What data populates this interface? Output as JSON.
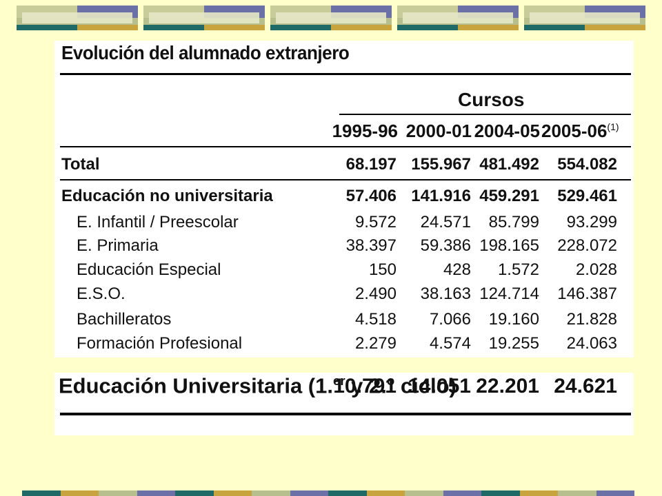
{
  "title": "Evolución del alumnado extranjero",
  "header": {
    "group": "Cursos",
    "years": [
      "1995-96",
      "2000-01",
      "2004-05",
      "2005-06"
    ],
    "footnote": "(1)"
  },
  "rows": [
    {
      "label": "Total",
      "values": [
        "68.197",
        "155.967",
        "481.492",
        "554.082"
      ],
      "bold": true
    },
    {
      "label": "Educación no universitaria",
      "values": [
        "57.406",
        "141.916",
        "459.291",
        "529.461"
      ],
      "bold": true
    },
    {
      "label": "E. Infantil / Preescolar",
      "values": [
        "9.572",
        "24.571",
        "85.799",
        "93.299"
      ]
    },
    {
      "label": "E. Primaria",
      "values": [
        "38.397",
        "59.386",
        "198.165",
        "228.072"
      ]
    },
    {
      "label": "Educación Especial",
      "values": [
        "150",
        "428",
        "1.572",
        "2.028"
      ]
    },
    {
      "label": "E.S.O.",
      "values": [
        "2.490",
        "38.163",
        "124.714",
        "146.387"
      ]
    },
    {
      "label": "Bachilleratos",
      "values": [
        "4.518",
        "7.066",
        "19.160",
        "21.828"
      ]
    },
    {
      "label": "Formación Profesional",
      "values": [
        "2.279",
        "4.574",
        "19.255",
        "24.063"
      ]
    }
  ],
  "university": {
    "label_main": "Educación Universitaria (1.",
    "sup1": "er",
    "label_mid": " y 2.",
    "sup2": "o",
    "label_end": " ciclo)",
    "values": [
      "10.791",
      "14.051",
      "22.201",
      "24.621"
    ]
  },
  "colors": {
    "background": "#ffffcc",
    "teal": "#1f6a66",
    "gold": "#c8a43f",
    "olive": "#b7bf8e",
    "violet": "#6b71a6"
  }
}
